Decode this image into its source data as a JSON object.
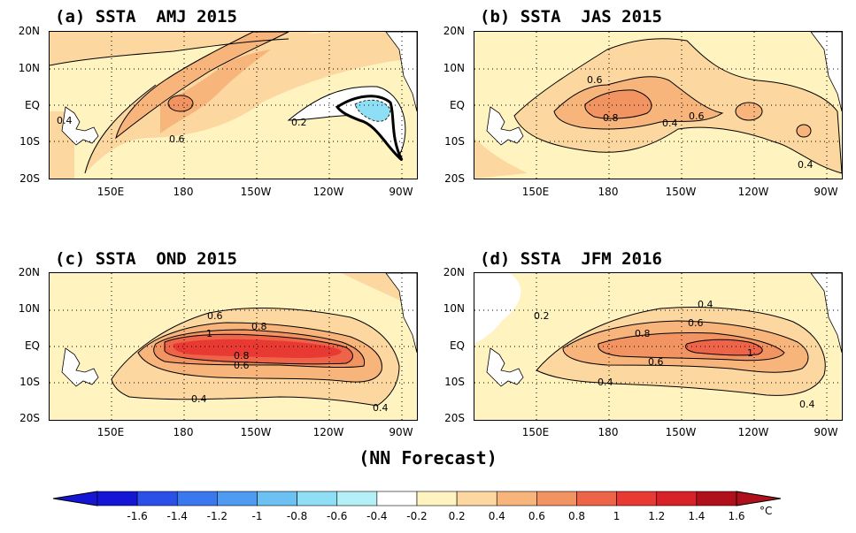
{
  "panels": [
    {
      "title": "(a) SSTA  AMJ 2015",
      "contour_labels": [
        "0.4",
        "0.6",
        "0.2"
      ]
    },
    {
      "title": "(b) SSTA  JAS 2015",
      "contour_labels": [
        "0.6",
        "0.8",
        "0.6",
        "0.4",
        "0.4"
      ]
    },
    {
      "title": "(c) SSTA  OND 2015",
      "contour_labels": [
        "0.6",
        "0.8",
        "1",
        "0.8",
        "0.6",
        "0.4",
        "0.4"
      ]
    },
    {
      "title": "(d) SSTA  JFM 2016",
      "contour_labels": [
        "0.2",
        "0.4",
        "0.6",
        "0.8",
        "1",
        "0.6",
        "0.4",
        "0.4"
      ]
    }
  ],
  "lat_labels": [
    "20N",
    "10N",
    "EQ",
    "10S",
    "20S"
  ],
  "lon_labels": [
    "150E",
    "180",
    "150W",
    "120W",
    "90W"
  ],
  "caption": "(NN Forecast)",
  "colorbar": {
    "ticks": [
      "-1.6",
      "-1.4",
      "-1.2",
      "-1",
      "-0.8",
      "-0.6",
      "-0.4",
      "-0.2",
      "0.2",
      "0.4",
      "0.6",
      "0.8",
      "1",
      "1.2",
      "1.4",
      "1.6"
    ],
    "unit": "°C",
    "colors": [
      "#1515d6",
      "#2a50e8",
      "#3a78f0",
      "#4f9bf2",
      "#6cc0f2",
      "#8edff5",
      "#b3f0f8",
      "#ffffff",
      "#fff3c0",
      "#fcd8a0",
      "#f7b57c",
      "#f29462",
      "#ee6448",
      "#e83a32",
      "#d62228",
      "#b0101c"
    ]
  },
  "map_colors": {
    "c02": "#fff3c0",
    "c04": "#fcd8a0",
    "c06": "#f7b57c",
    "c08": "#f29462",
    "c10": "#ee6448",
    "c12": "#e83a32",
    "neutral": "#ffffff",
    "cool": "#b3f0f8",
    "cool2": "#8edff5"
  }
}
